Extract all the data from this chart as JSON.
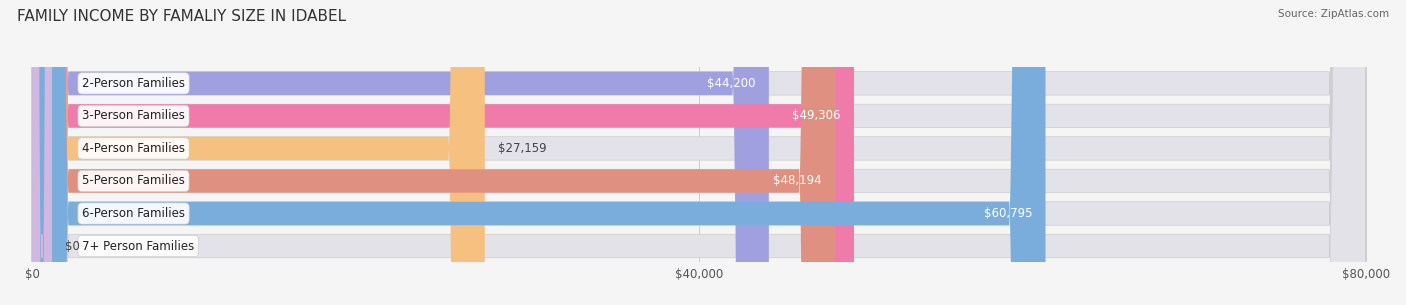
{
  "title": "FAMILY INCOME BY FAMALIY SIZE IN IDABEL",
  "source": "Source: ZipAtlas.com",
  "categories": [
    "2-Person Families",
    "3-Person Families",
    "4-Person Families",
    "5-Person Families",
    "6-Person Families",
    "7+ Person Families"
  ],
  "values": [
    44200,
    49306,
    27159,
    48194,
    60795,
    0
  ],
  "labels": [
    "$44,200",
    "$49,306",
    "$27,159",
    "$48,194",
    "$60,795",
    "$0"
  ],
  "bar_colors": [
    "#a0a0e0",
    "#f07aaa",
    "#f5c080",
    "#e09080",
    "#7aaddc",
    "#d0b8e0"
  ],
  "label_inside_colors": [
    "#333333",
    "#ffffff",
    "#333333",
    "#ffffff",
    "#ffffff",
    "#333333"
  ],
  "background_color": "#f5f5f5",
  "bar_bg_color": "#e2e2e8",
  "xlim": [
    0,
    80000
  ],
  "xticks": [
    0,
    40000,
    80000
  ],
  "xticklabels": [
    "$0",
    "$40,000",
    "$80,000"
  ],
  "title_fontsize": 11,
  "label_fontsize": 8.5,
  "value_fontsize": 8.5,
  "tick_fontsize": 8.5,
  "bar_height": 0.72,
  "bar_gap": 0.08
}
